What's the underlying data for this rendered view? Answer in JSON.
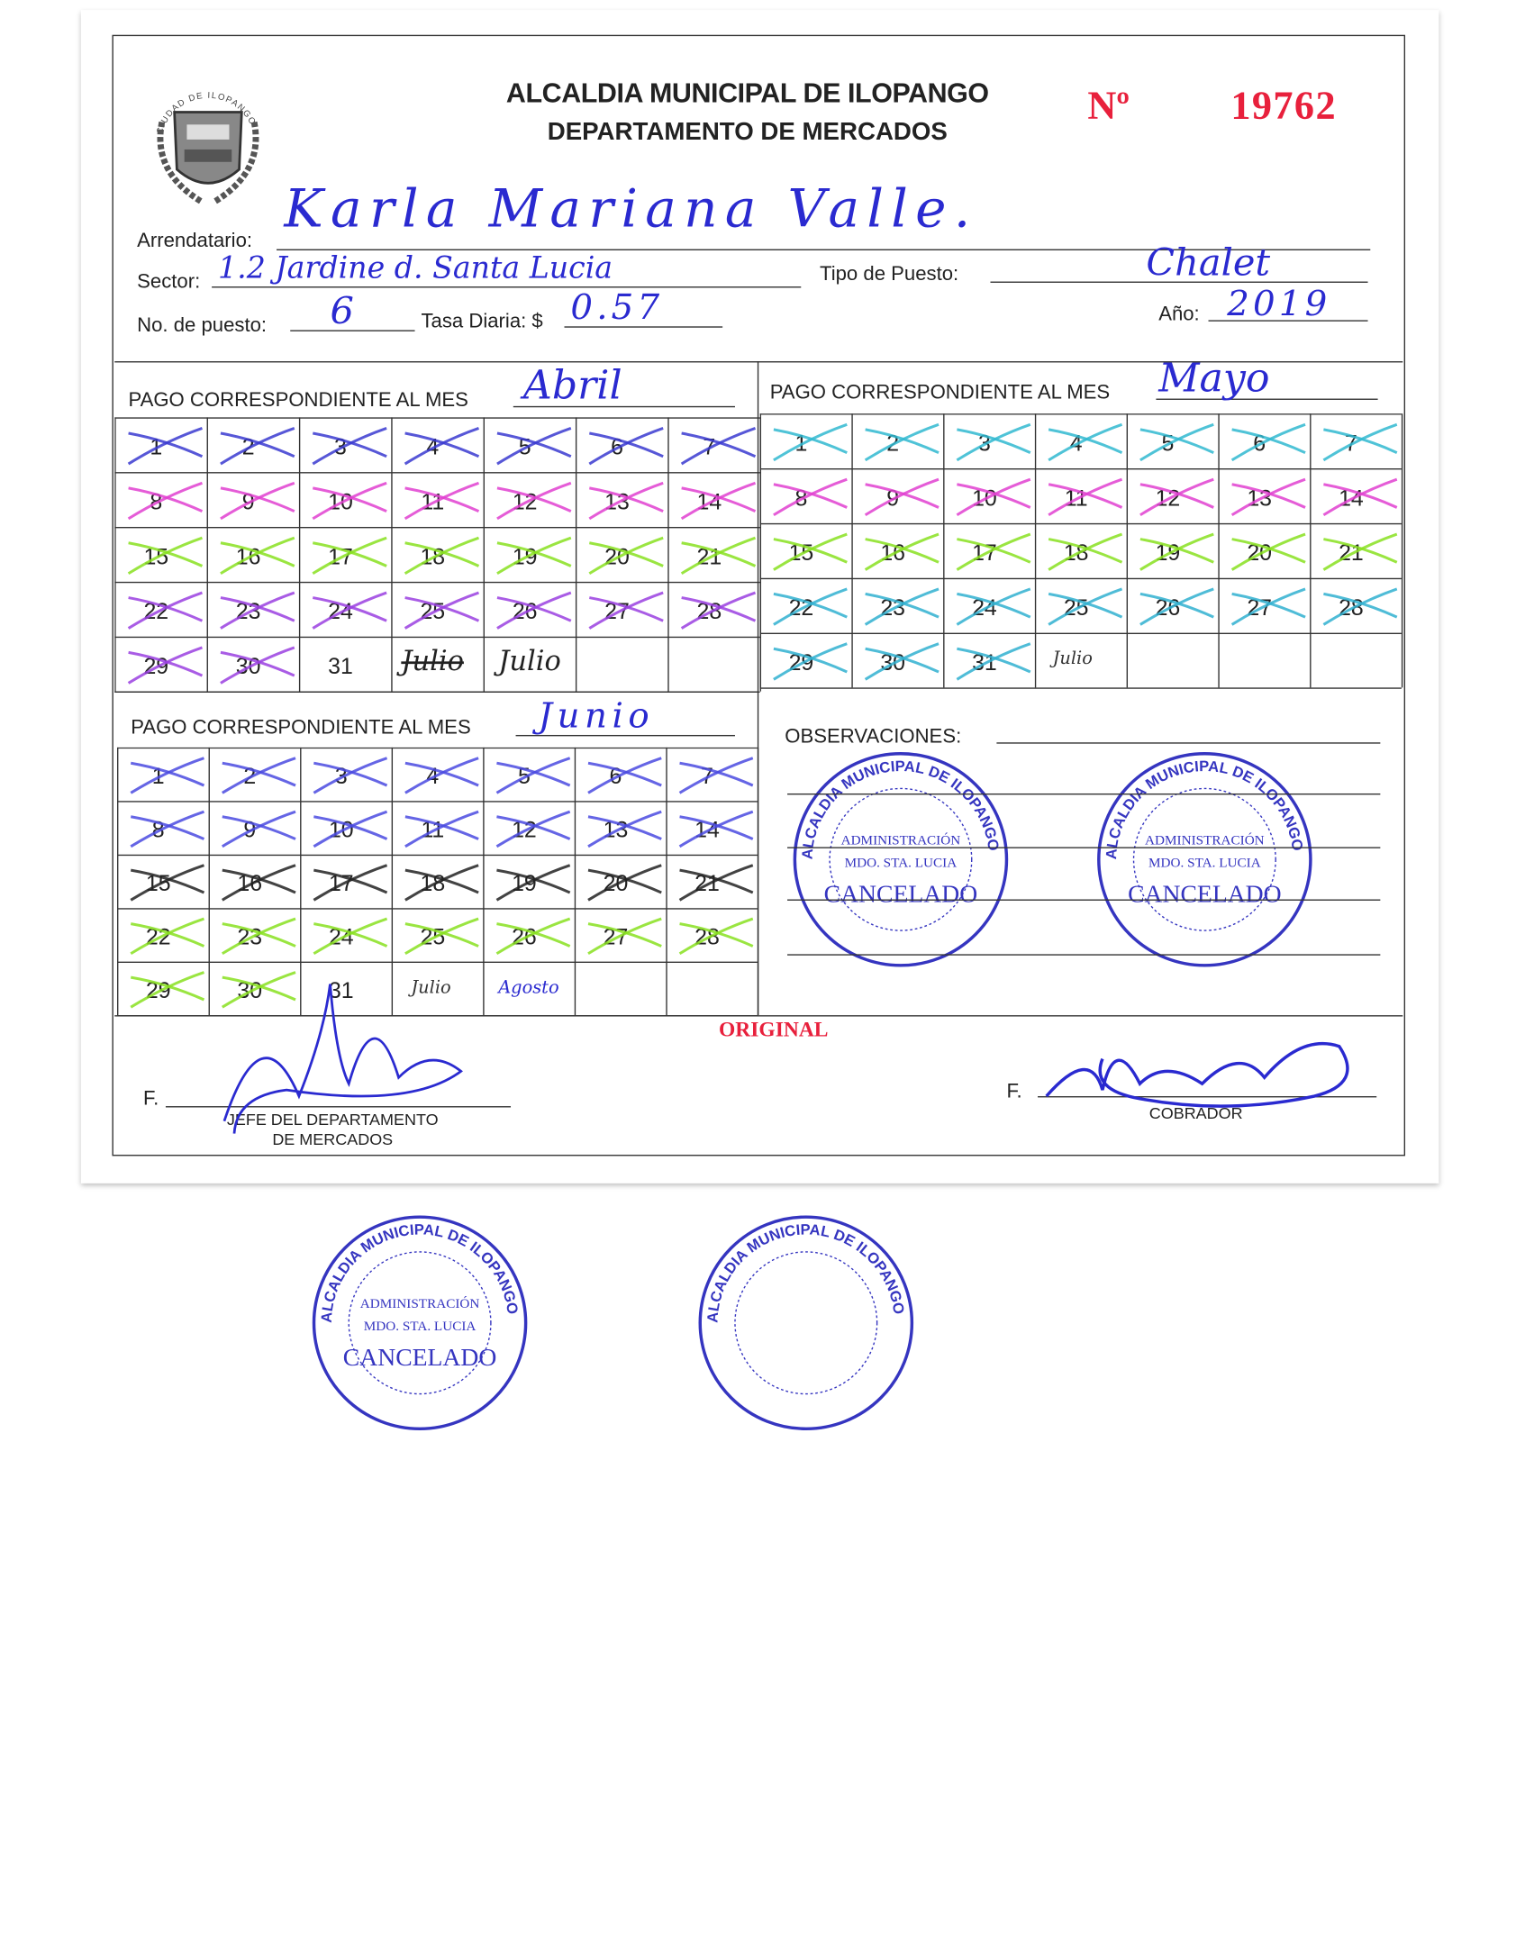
{
  "header": {
    "seal_text": "CIUDAD DE ILOPANGO",
    "title": "ALCALDIA MUNICIPAL DE ILOPANGO",
    "subtitle": "DEPARTAMENTO DE MERCADOS",
    "number_label": "Nº",
    "number": "19762"
  },
  "fields": {
    "arrendatario_label": "Arrendatario:",
    "arrendatario_value": "Karla Mariana Valle.",
    "sector_label": "Sector:",
    "sector_value": "1.2 Jardine d. Santa Lucia",
    "tipo_label": "Tipo de Puesto:",
    "tipo_value": "Chalet",
    "puesto_label": "No. de puesto:",
    "puesto_value": "6",
    "tasa_label": "Tasa Diaria: $",
    "tasa_value": "0.57",
    "anio_label": "Año:",
    "anio_value": "2019"
  },
  "months": [
    {
      "header_label": "PAGO CORRESPONDIENTE AL MES",
      "month": "Abril",
      "paid_through_day": 30,
      "days": [
        1,
        2,
        3,
        4,
        5,
        6,
        7,
        8,
        9,
        10,
        11,
        12,
        13,
        14,
        15,
        16,
        17,
        18,
        19,
        20,
        21,
        22,
        23,
        24,
        25,
        26,
        27,
        28,
        29,
        30,
        31
      ],
      "row_mark_colors": [
        "#3a3ad0",
        "#e040d0",
        "#88e020",
        "#9a40e0",
        "#9a40e0"
      ],
      "annotations": [
        "Julio",
        "Julio"
      ]
    },
    {
      "header_label": "PAGO CORRESPONDIENTE AL MES",
      "month": "Mayo",
      "paid_through_day": 31,
      "days": [
        1,
        2,
        3,
        4,
        5,
        6,
        7,
        8,
        9,
        10,
        11,
        12,
        13,
        14,
        15,
        16,
        17,
        18,
        19,
        20,
        21,
        22,
        23,
        24,
        25,
        26,
        27,
        28,
        29,
        30,
        31
      ],
      "row_mark_colors": [
        "#30b8d0",
        "#e040d0",
        "#88e020",
        "#30b0d0",
        "#30b0d0"
      ],
      "annotations": [
        "Julio"
      ]
    },
    {
      "header_label": "PAGO CORRESPONDIENTE AL MES",
      "month": "Junio",
      "paid_through_day": 30,
      "days": [
        1,
        2,
        3,
        4,
        5,
        6,
        7,
        8,
        9,
        10,
        11,
        12,
        13,
        14,
        15,
        16,
        17,
        18,
        19,
        20,
        21,
        22,
        23,
        24,
        25,
        26,
        27,
        28,
        29,
        30,
        31
      ],
      "row_mark_colors": [
        "#4a4ae0",
        "#4a4ae0",
        "#222222",
        "#88e020",
        "#88e020"
      ],
      "annotations": [
        "Julio",
        "Agosto"
      ]
    }
  ],
  "stamp": {
    "ring_text": "ALCALDIA MUNICIPAL DE ILOPANGO",
    "line1": "ADMINISTRACIÓN",
    "line2": "MDO. STA. LUCIA",
    "line3": "CANCELADO",
    "color": "#3535c0"
  },
  "observaciones_label": "OBSERVACIONES:",
  "original_label": "ORIGINAL",
  "signatures": {
    "left_prefix": "F.",
    "left_title_1": "JEFE DEL DEPARTAMENTO",
    "left_title_2": "DE MERCADOS",
    "right_prefix": "F.",
    "right_title": "COBRADOR"
  },
  "colors": {
    "ink_blue": "#2a2ad0",
    "red": "#e8203c"
  }
}
